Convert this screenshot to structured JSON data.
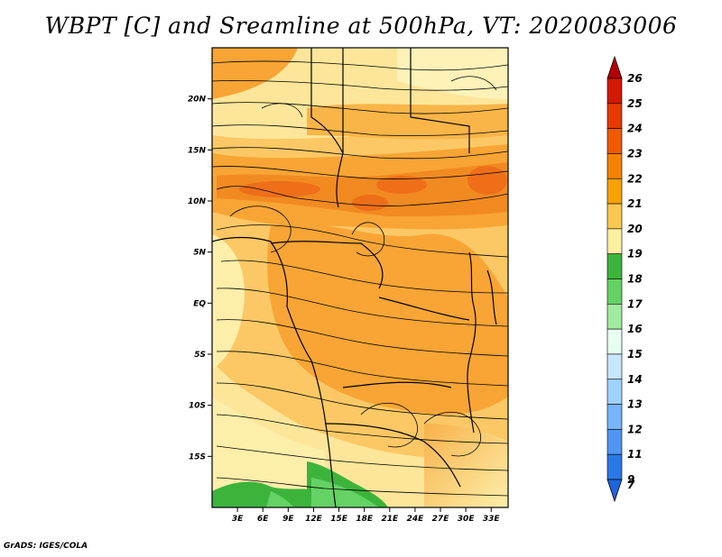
{
  "title": "WBPT [C] and Sreamline at 500hPa, VT: 2020083006",
  "credit": "GrADS: IGES/COLA",
  "map": {
    "lon_range": [
      0,
      35
    ],
    "lat_range": [
      -20,
      25
    ],
    "lon_ticks": [
      "3E",
      "6E",
      "9E",
      "12E",
      "15E",
      "18E",
      "21E",
      "24E",
      "27E",
      "30E",
      "33E"
    ],
    "lat_ticks": [
      "20N",
      "15N",
      "10N",
      "5N",
      "EQ",
      "5S",
      "10S",
      "15S"
    ]
  },
  "colorbar": {
    "labels": [
      "26",
      "25",
      "24",
      "23",
      "22",
      "21",
      "20",
      "19",
      "18",
      "17",
      "16",
      "15",
      "14",
      "13",
      "12",
      "11",
      "9",
      "7"
    ],
    "colors": [
      "#b40000",
      "#d21a00",
      "#e63a00",
      "#f05a00",
      "#f58200",
      "#f8a200",
      "#fac850",
      "#fdf0a0",
      "#3cb43c",
      "#64d264",
      "#a0eba0",
      "#e6fff0",
      "#c8e6ff",
      "#a0d2ff",
      "#78b4ff",
      "#5096f0",
      "#2a78e6",
      "#1e64dc"
    ]
  }
}
